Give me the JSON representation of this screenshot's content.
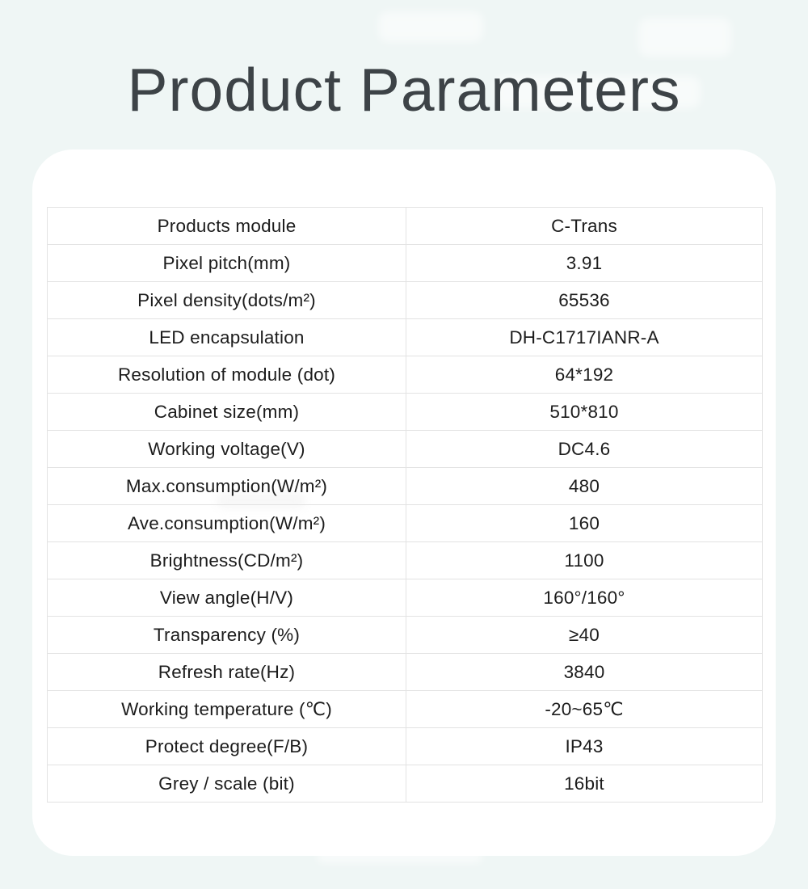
{
  "page": {
    "title": "Product Parameters",
    "background_color": "#eff6f5",
    "card_color": "#ffffff",
    "title_color": "#3d4347",
    "text_color": "#1c1c1c",
    "border_color": "#e3e3e3"
  },
  "table": {
    "rows": [
      {
        "label": "Products module",
        "value": "C-Trans"
      },
      {
        "label": "Pixel pitch(mm)",
        "value": "3.91"
      },
      {
        "label": "Pixel density(dots/m²)",
        "value": "65536"
      },
      {
        "label": "LED encapsulation",
        "value": "DH-C1717IANR-A"
      },
      {
        "label": "Resolution of module (dot)",
        "value": "64*192"
      },
      {
        "label": "Cabinet size(mm)",
        "value": "510*810"
      },
      {
        "label": "Working voltage(V)",
        "value": "DC4.6"
      },
      {
        "label": "Max.consumption(W/m²)",
        "value": "480"
      },
      {
        "label": "Ave.consumption(W/m²)",
        "value": "160"
      },
      {
        "label": "Brightness(CD/m²)",
        "value": "1100"
      },
      {
        "label": "View angle(H/V)",
        "value": "160°/160°"
      },
      {
        "label": "Transparency (%)",
        "value": "≥40"
      },
      {
        "label": "Refresh rate(Hz)",
        "value": "3840"
      },
      {
        "label": "Working temperature (℃)",
        "value": "-20~65℃"
      },
      {
        "label": "Protect degree(F/B)",
        "value": "IP43"
      },
      {
        "label": "Grey / scale (bit)",
        "value": "16bit"
      }
    ]
  }
}
